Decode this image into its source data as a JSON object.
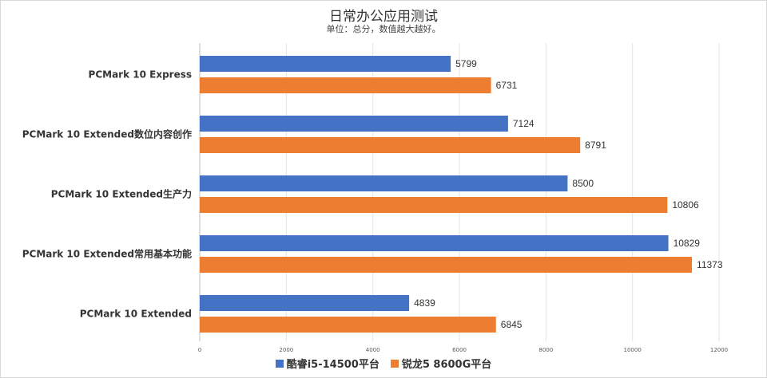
{
  "chart_data": {
    "type": "bar",
    "orientation": "horizontal",
    "title": "日常办公应用测试",
    "subtitle": "单位：总分，数值越大越好。",
    "categories": [
      "PCMark 10 Express",
      "PCMark 10 Extended数位内容创作",
      "PCMark 10 Extended生产力",
      "PCMark 10 Extended常用基本功能",
      "PCMark 10 Extended"
    ],
    "series": [
      {
        "name": "酷睿i5-14500平台",
        "color": "#4472C4",
        "values": [
          5799,
          7124,
          8500,
          10829,
          4839
        ]
      },
      {
        "name": "锐龙5 8600G平台",
        "color": "#ED7D31",
        "values": [
          6731,
          8791,
          10806,
          11373,
          6845
        ]
      }
    ],
    "xlim": [
      0,
      12000
    ],
    "xticks": [
      0,
      2000,
      4000,
      6000,
      8000,
      10000,
      12000
    ],
    "grid": true,
    "legend_position": "bottom"
  }
}
